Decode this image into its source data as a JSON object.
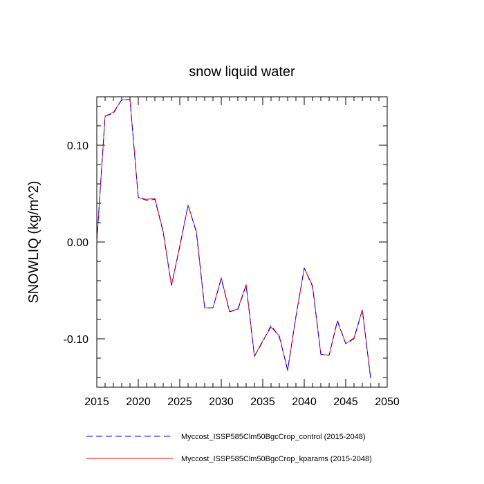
{
  "chart_data": {
    "type": "line",
    "title": "snow liquid water",
    "xlabel": "",
    "ylabel": "SNOWLIQ  (kg/m^2)",
    "xlim": [
      2015,
      2050
    ],
    "ylim": [
      -0.15,
      0.15
    ],
    "x_ticks": [
      2015,
      2020,
      2025,
      2030,
      2035,
      2040,
      2045,
      2050
    ],
    "x_tick_labels": [
      "2015",
      "2020",
      "2025",
      "2030",
      "2035",
      "2040",
      "2045",
      "2050"
    ],
    "y_ticks": [
      -0.1,
      0.0,
      0.1
    ],
    "y_tick_labels": [
      "-0.10",
      "0.00",
      "0.10"
    ],
    "x": [
      2015,
      2016,
      2017,
      2018,
      2019,
      2020,
      2021,
      2022,
      2023,
      2024,
      2025,
      2026,
      2027,
      2028,
      2029,
      2030,
      2031,
      2032,
      2033,
      2034,
      2035,
      2036,
      2037,
      2038,
      2039,
      2040,
      2041,
      2042,
      2043,
      2044,
      2045,
      2046,
      2047,
      2048
    ],
    "series": [
      {
        "name": "Myccost_ISSP585Clm50BgcCrop_control (2015-2048)",
        "color": "#0000ff",
        "style": "dashed",
        "values": [
          0.0,
          0.13,
          0.133,
          0.147,
          0.147,
          0.046,
          0.043,
          0.044,
          0.01,
          -0.045,
          -0.005,
          0.038,
          0.01,
          -0.068,
          -0.068,
          -0.038,
          -0.072,
          -0.07,
          -0.045,
          -0.118,
          -0.103,
          -0.086,
          -0.098,
          -0.132,
          -0.077,
          -0.027,
          -0.046,
          -0.116,
          -0.117,
          -0.081,
          -0.105,
          -0.1,
          -0.07,
          -0.14
        ]
      },
      {
        "name": "Myccost_ISSP585Clm50BgcCrop_kparams (2015-2048)",
        "color": "#ff0000",
        "style": "solid",
        "values": [
          0.0,
          0.13,
          0.134,
          0.147,
          0.147,
          0.046,
          0.044,
          0.045,
          0.011,
          -0.045,
          -0.004,
          0.038,
          0.011,
          -0.068,
          -0.068,
          -0.037,
          -0.072,
          -0.069,
          -0.044,
          -0.118,
          -0.102,
          -0.088,
          -0.097,
          -0.133,
          -0.077,
          -0.027,
          -0.045,
          -0.116,
          -0.117,
          -0.082,
          -0.105,
          -0.099,
          -0.07,
          -0.141
        ]
      }
    ],
    "legend_position": "bottom"
  }
}
